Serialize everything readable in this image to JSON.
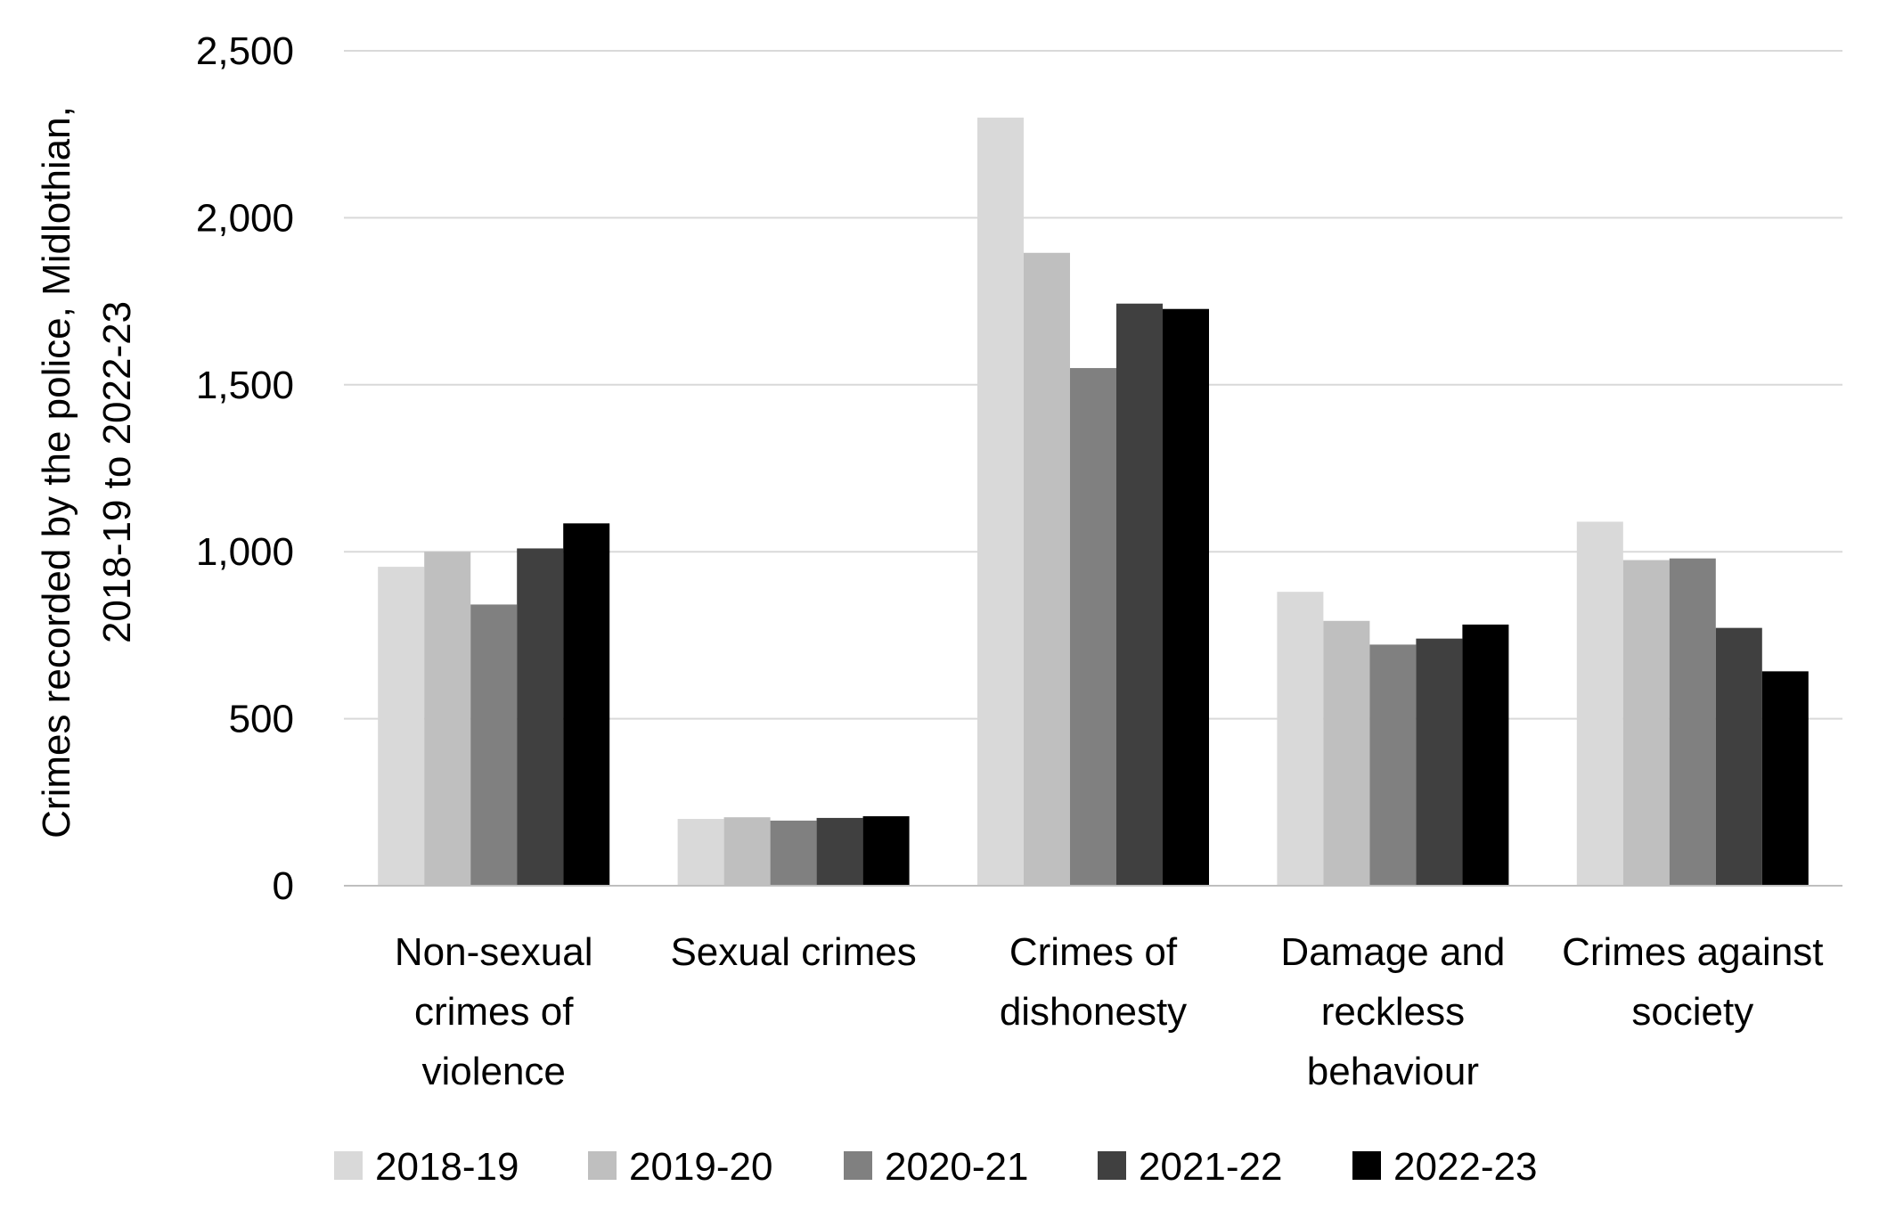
{
  "chart_data": {
    "type": "bar",
    "title": "",
    "xlabel": "",
    "ylabel_lines": [
      "Crimes recorded by the police, Midlothian,",
      "2018-19 to 2022-23"
    ],
    "ylim": [
      0,
      2500
    ],
    "yticks": [
      0,
      500,
      1000,
      1500,
      2000,
      2500
    ],
    "ytick_labels": [
      "0",
      "500",
      "1,000",
      "1,500",
      "2,000",
      "2,500"
    ],
    "grid": true,
    "legend_position": "bottom",
    "categories": [
      [
        "Non-sexual",
        "crimes of",
        "violence"
      ],
      [
        "Sexual crimes"
      ],
      [
        "Crimes of",
        "dishonesty"
      ],
      [
        "Damage and",
        "reckless",
        "behaviour"
      ],
      [
        "Crimes against",
        "society"
      ]
    ],
    "series": [
      {
        "name": "2018-19",
        "color": "#d9d9d9",
        "values": [
          955,
          200,
          2300,
          880,
          1090
        ]
      },
      {
        "name": "2019-20",
        "color": "#bfbfbf",
        "values": [
          1000,
          205,
          1895,
          793,
          975
        ]
      },
      {
        "name": "2020-21",
        "color": "#808080",
        "values": [
          842,
          195,
          1550,
          722,
          980
        ]
      },
      {
        "name": "2021-22",
        "color": "#404040",
        "values": [
          1010,
          203,
          1743,
          740,
          772
        ]
      },
      {
        "name": "2022-23",
        "color": "#000000",
        "values": [
          1085,
          208,
          1727,
          782,
          642
        ]
      }
    ]
  }
}
